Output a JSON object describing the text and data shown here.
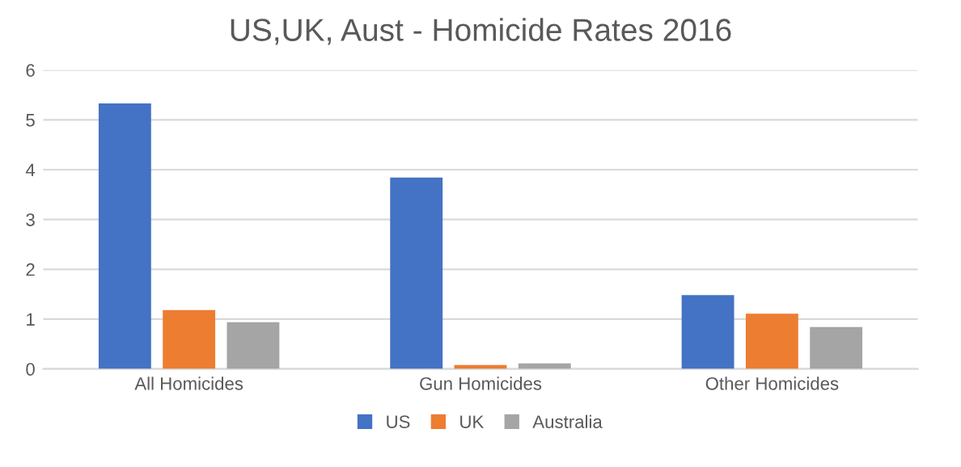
{
  "chart_data": {
    "type": "bar",
    "title": "US,UK, Aust - Homicide Rates 2016",
    "categories": [
      "All Homicides",
      "Gun Homicides",
      "Other Homicides"
    ],
    "series": [
      {
        "name": "US",
        "color": "#4472c4",
        "values": [
          5.33,
          3.84,
          1.48
        ]
      },
      {
        "name": "UK",
        "color": "#ed7d31",
        "values": [
          1.18,
          0.08,
          1.11
        ]
      },
      {
        "name": "Australia",
        "color": "#a5a5a5",
        "values": [
          0.94,
          0.11,
          0.84
        ]
      }
    ],
    "ylim": [
      0,
      6
    ],
    "yticks": [
      0,
      1,
      2,
      3,
      4,
      5,
      6
    ],
    "grid": "y",
    "legend": "bottom"
  }
}
